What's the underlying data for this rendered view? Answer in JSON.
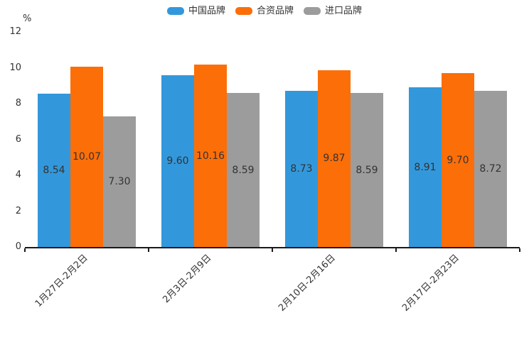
{
  "chart_data": {
    "type": "bar",
    "title": "",
    "ylabel": "%",
    "xlabel": "",
    "categories": [
      "1月27日-2月2日",
      "2月3日-2月9日",
      "2月10日-2月16日",
      "2月17日-2月23日"
    ],
    "series": [
      {
        "name": "中国品牌",
        "color": "#3398db",
        "values": [
          8.54,
          9.6,
          8.73,
          8.91
        ]
      },
      {
        "name": "合资品牌",
        "color": "#fc6e08",
        "values": [
          10.07,
          10.16,
          9.87,
          9.7
        ]
      },
      {
        "name": "进口品牌",
        "color": "#9c9c9c",
        "values": [
          7.3,
          8.59,
          8.59,
          8.72
        ]
      }
    ],
    "ylim": [
      0,
      12
    ],
    "yticks": [
      0,
      2,
      4,
      6,
      8,
      10,
      12
    ],
    "grid": false,
    "legend_position": "top",
    "value_label_decimals": 2,
    "axis_color": "#1a1a1a",
    "text_color": "#333333"
  }
}
